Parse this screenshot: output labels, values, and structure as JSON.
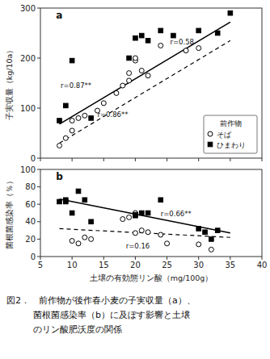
{
  "chart_data": [
    {
      "type": "scatter",
      "title": "a",
      "ylabel": "子実収量（kg/10a）",
      "xlim": [
        5,
        40
      ],
      "xticks": [
        5,
        10,
        15,
        20,
        25,
        30,
        35,
        40
      ],
      "ylim": [
        0,
        300
      ],
      "yticks": [
        0,
        100,
        200,
        300
      ],
      "grid": false,
      "tick_labels": "y",
      "legend": "lower right",
      "legend_title": "前作物",
      "series": [
        {
          "name": "そば",
          "type": "scatter",
          "marker": "open-circle",
          "color": "black",
          "x": [
            8,
            9,
            10,
            10,
            11,
            12,
            14,
            15,
            17,
            18,
            19,
            19,
            20,
            20,
            21,
            22,
            24,
            28,
            30
          ],
          "values": [
            25,
            40,
            55,
            75,
            80,
            85,
            95,
            110,
            130,
            145,
            155,
            170,
            195,
            200,
            175,
            165,
            225,
            215,
            220
          ]
        },
        {
          "name": "ひまわり",
          "type": "scatter",
          "marker": "square",
          "color": "black",
          "x": [
            8,
            9,
            10,
            13,
            19,
            20,
            21,
            22,
            24,
            26,
            30,
            33,
            35
          ],
          "values": [
            75,
            105,
            195,
            80,
            200,
            240,
            245,
            235,
            255,
            245,
            255,
            250,
            290
          ]
        },
        {
          "type": "line",
          "line_style": "dashed",
          "color": "black",
          "x": [
            8,
            35
          ],
          "values": [
            30,
            235
          ]
        },
        {
          "type": "line",
          "line_style": "solid",
          "color": "black",
          "x": [
            8,
            35
          ],
          "values": [
            68,
            272
          ]
        }
      ],
      "annotations": [
        {
          "text": "r=0.87**",
          "x": 8.2,
          "y": 140
        },
        {
          "text": "r=0.86**",
          "x": 14.0,
          "y": 82
        },
        {
          "text": "r=0.58",
          "x": 25.5,
          "y": 228
        }
      ]
    },
    {
      "type": "scatter",
      "title": "b",
      "ylabel": "菌根菌感染率（％）",
      "xlabel": "土壌の有効態リン酸（mg/100g）",
      "xlim": [
        5,
        40
      ],
      "xticks": [
        5,
        10,
        15,
        20,
        25,
        30,
        35,
        40
      ],
      "ylim": [
        0,
        100
      ],
      "yticks": [
        0,
        20,
        40,
        60,
        80,
        100
      ],
      "grid": false,
      "legend": false,
      "series": [
        {
          "name": "そば",
          "type": "scatter",
          "marker": "open-circle",
          "color": "black",
          "x": [
            10,
            11,
            12,
            13,
            18,
            19,
            20,
            20,
            21,
            22,
            24,
            25,
            30,
            32
          ],
          "values": [
            18,
            15,
            22,
            20,
            43,
            45,
            50,
            27,
            30,
            28,
            25,
            15,
            14,
            8
          ]
        },
        {
          "name": "ひまわり",
          "type": "scatter",
          "marker": "square",
          "color": "black",
          "x": [
            8,
            9,
            9,
            10,
            11,
            12,
            13,
            20,
            20,
            21,
            22,
            24,
            30,
            31,
            32,
            33
          ],
          "values": [
            63,
            65,
            63,
            50,
            75,
            65,
            40,
            48,
            47,
            50,
            50,
            65,
            32,
            28,
            20,
            30
          ]
        },
        {
          "type": "line",
          "line_style": "dashed",
          "color": "black",
          "x": [
            8,
            35
          ],
          "values": [
            32,
            22
          ]
        },
        {
          "type": "line",
          "line_style": "solid",
          "color": "black",
          "x": [
            8,
            35
          ],
          "values": [
            66,
            27
          ]
        }
      ],
      "annotations": [
        {
          "text": "r=0.66**",
          "x": 24.0,
          "y": 46
        },
        {
          "text": "r=0.16",
          "x": 18.5,
          "y": 9
        }
      ]
    }
  ],
  "caption": [
    "図2．　前作物が後作春小麦の子実収量（a）、",
    "　　　菌根菌感染率（b）に及ぼす影響と土壌",
    "　　　のリン酸肥沃度の関係"
  ]
}
